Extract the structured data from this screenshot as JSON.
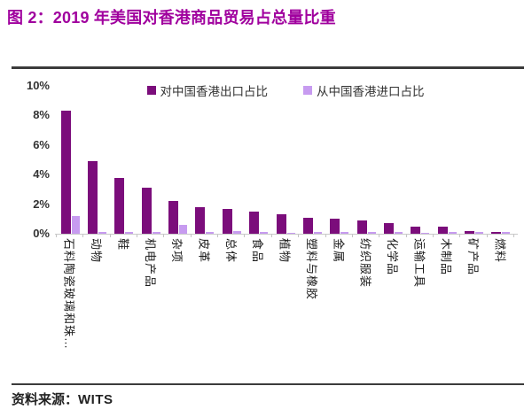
{
  "title": "图 2：2019 年美国对香港商品贸易占总量比重",
  "source": {
    "label": "资料来源：",
    "value": "WITS"
  },
  "colors": {
    "title_purple": "#A0009E",
    "export_bar": "#7B0D7B",
    "import_bar": "#C79BF0",
    "rule_dark": "#3B3B3B",
    "axis_gray": "#C9C9C9"
  },
  "chart_data": {
    "type": "bar",
    "title": "2019 年美国对香港商品贸易占总量比重",
    "categories": [
      "石料陶瓷玻璃和珠…",
      "动物",
      "鞋",
      "机电产品",
      "杂项",
      "皮革",
      "总体",
      "食品",
      "植物",
      "塑料与橡胶",
      "金属",
      "纺织服装",
      "化学品",
      "运输工具",
      "木制品",
      "矿产品",
      "燃料"
    ],
    "series": [
      {
        "name": "对中国香港出口占比",
        "color": "#7B0D7B",
        "values": [
          8.3,
          4.9,
          3.8,
          3.1,
          2.2,
          1.8,
          1.7,
          1.5,
          1.3,
          1.1,
          1.0,
          0.9,
          0.7,
          0.5,
          0.5,
          0.2,
          0.15
        ]
      },
      {
        "name": "从中国香港进口占比",
        "color": "#C79BF0",
        "values": [
          1.2,
          0.1,
          0.1,
          0.1,
          0.6,
          0.15,
          0.2,
          0.1,
          0.05,
          0.1,
          0.1,
          0.1,
          0.1,
          0.05,
          0.1,
          0.1,
          0.1
        ]
      }
    ],
    "xlabel": "",
    "ylabel": "",
    "ylim": [
      0,
      10
    ],
    "yticks": [
      "0%",
      "2%",
      "4%",
      "6%",
      "8%",
      "10%"
    ],
    "legend_position": "top",
    "grid": false
  }
}
